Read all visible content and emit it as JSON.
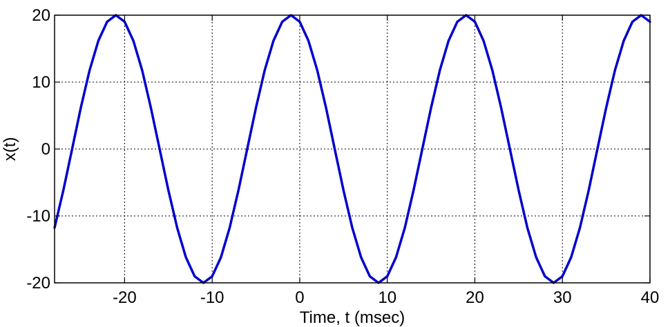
{
  "chart_data": {
    "type": "line",
    "xlabel": "Time, t (msec)",
    "ylabel": "x(t)",
    "xlim": [
      -28,
      40
    ],
    "ylim": [
      -20,
      20
    ],
    "x_ticks": [
      -20,
      -10,
      0,
      10,
      20,
      30,
      40
    ],
    "x_tick_labels": [
      "-20",
      "-10",
      "0",
      "10",
      "20",
      "30",
      "40"
    ],
    "y_ticks": [
      -20,
      -10,
      0,
      10,
      20
    ],
    "y_tick_labels": [
      "-20",
      "-10",
      "0",
      "10",
      "20"
    ],
    "grid": true,
    "grid_style": "dotted",
    "series": [
      {
        "color": "#0000cc",
        "x": [
          -28,
          -27,
          -26,
          -25,
          -24,
          -23,
          -22,
          -21,
          -20,
          -19,
          -18,
          -17,
          -16,
          -15,
          -14,
          -13,
          -12,
          -11,
          -10,
          -9,
          -8,
          -7,
          -6,
          -5,
          -4,
          -3,
          -2,
          -1,
          0,
          1,
          2,
          3,
          4,
          5,
          6,
          7,
          8,
          9,
          10,
          11,
          12,
          13,
          14,
          15,
          16,
          17,
          18,
          19,
          20,
          21,
          22,
          23,
          24,
          25,
          26,
          27,
          28,
          29,
          30,
          31,
          32,
          33,
          34,
          35,
          36,
          37,
          38,
          39,
          40
        ],
        "y": [
          -11.76,
          -6.18,
          0,
          6.18,
          11.76,
          16.18,
          19.02,
          20,
          19.02,
          16.18,
          11.76,
          6.18,
          0,
          -6.18,
          -11.76,
          -16.18,
          -19.02,
          -20,
          -19.02,
          -16.18,
          -11.76,
          -6.18,
          0,
          6.18,
          11.76,
          16.18,
          19.02,
          20,
          19.02,
          16.18,
          11.76,
          6.18,
          0,
          -6.18,
          -11.76,
          -16.18,
          -19.02,
          -20,
          -19.02,
          -16.18,
          -11.76,
          -6.18,
          0,
          6.18,
          11.76,
          16.18,
          19.02,
          20,
          19.02,
          16.18,
          11.76,
          6.18,
          0,
          -6.18,
          -11.76,
          -16.18,
          -19.02,
          -20,
          -19.02,
          -16.18,
          -11.76,
          -6.18,
          0,
          6.18,
          11.76,
          16.18,
          19.02,
          20,
          19.02
        ]
      }
    ]
  }
}
